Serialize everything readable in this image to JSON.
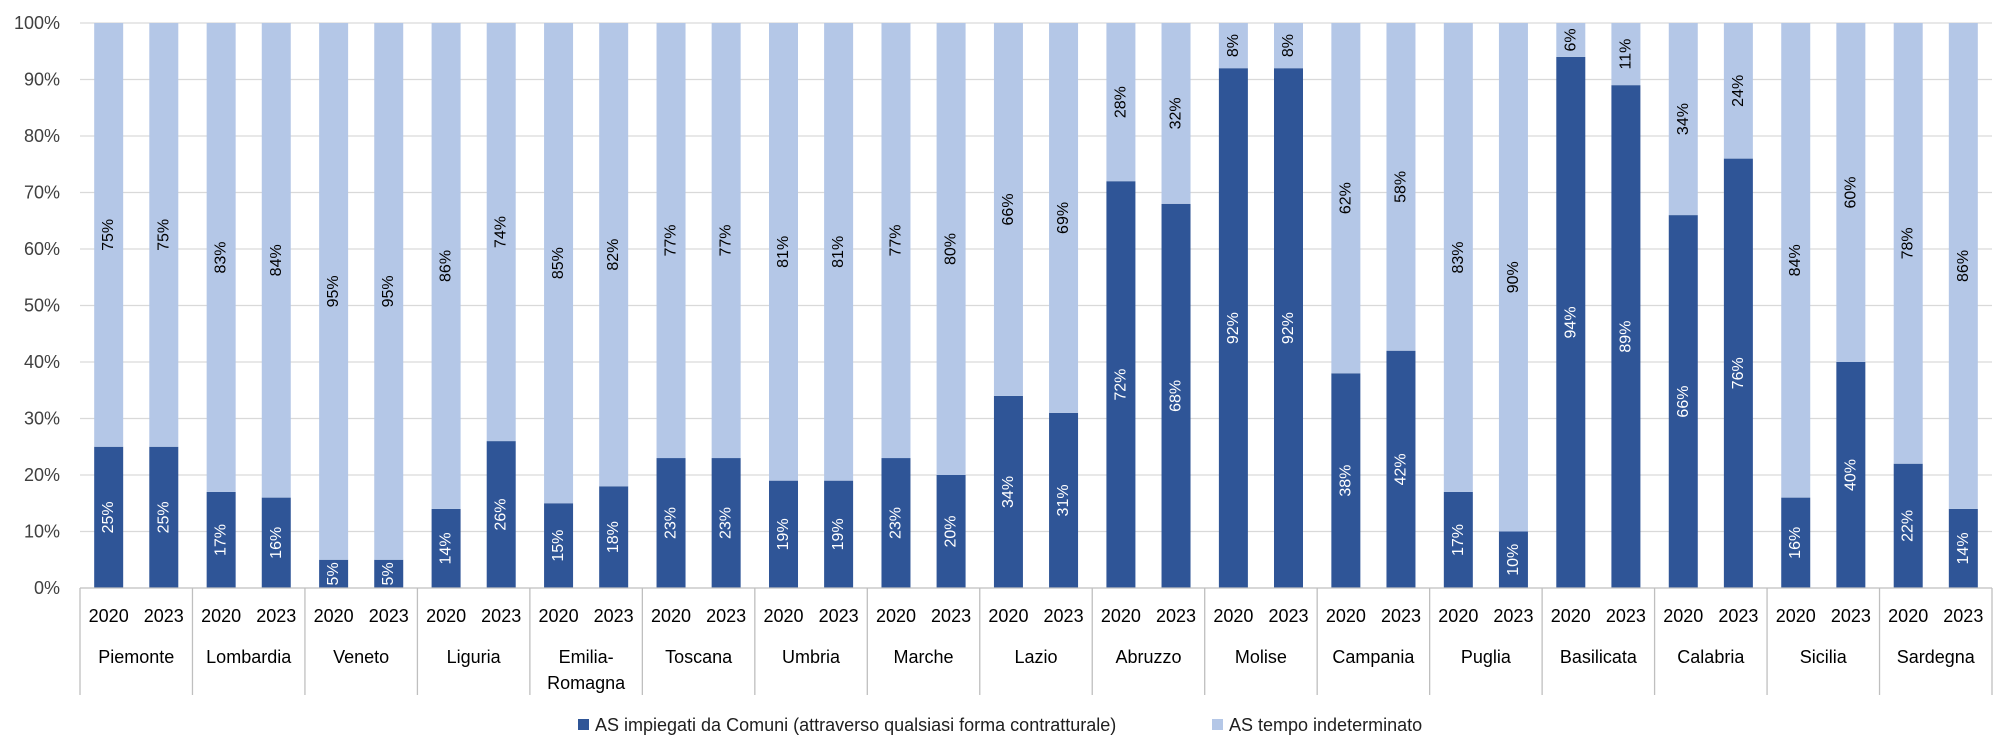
{
  "chart_data": {
    "type": "bar",
    "stacked": true,
    "percent_stacked": true,
    "title": "",
    "xlabel": "",
    "ylabel": "",
    "ylim": [
      0,
      100
    ],
    "yticks": [
      "0%",
      "10%",
      "20%",
      "30%",
      "40%",
      "50%",
      "60%",
      "70%",
      "80%",
      "90%",
      "100%"
    ],
    "grid": true,
    "legend_position": "bottom",
    "groups": [
      "Piemonte",
      "Lombardia",
      "Veneto",
      "Liguria",
      "Emilia-Romagna",
      "Toscana",
      "Umbria",
      "Marche",
      "Lazio",
      "Abruzzo",
      "Molise",
      "Campania",
      "Puglia",
      "Basilicata",
      "Calabria",
      "Sicilia",
      "Sardegna"
    ],
    "years": [
      "2020",
      "2023"
    ],
    "series": [
      {
        "name": "AS impiegati da Comuni (attraverso qualsiasi forma contratturale)",
        "color": "#2F5597",
        "label_color": "#ffffff",
        "values": [
          25,
          25,
          17,
          16,
          5,
          5,
          14,
          26,
          15,
          18,
          23,
          23,
          19,
          19,
          23,
          20,
          34,
          31,
          72,
          68,
          92,
          92,
          38,
          42,
          17,
          10,
          94,
          89,
          66,
          76,
          16,
          40,
          22,
          14
        ],
        "labels": [
          "25%",
          "25%",
          "17%",
          "16%",
          "5%",
          "5%",
          "14%",
          "26%",
          "15%",
          "18%",
          "23%",
          "23%",
          "19%",
          "19%",
          "23%",
          "20%",
          "34%",
          "31%",
          "72%",
          "68%",
          "92%",
          "92%",
          "38%",
          "42%",
          "17%",
          "10%",
          "94%",
          "89%",
          "66%",
          "76%",
          "16%",
          "40%",
          "22%",
          "14%"
        ]
      },
      {
        "name": "AS tempo indeterminato",
        "color": "#B4C7E7",
        "label_color": "#000000",
        "values": [
          75,
          75,
          83,
          84,
          95,
          95,
          86,
          74,
          85,
          82,
          77,
          77,
          81,
          81,
          77,
          80,
          66,
          69,
          28,
          32,
          8,
          8,
          62,
          58,
          83,
          90,
          6,
          11,
          34,
          24,
          84,
          60,
          78,
          86
        ],
        "labels": [
          "75%",
          "75%",
          "83%",
          "84%",
          "95%",
          "95%",
          "86%",
          "74%",
          "85%",
          "82%",
          "77%",
          "77%",
          "81%",
          "81%",
          "77%",
          "80%",
          "66%",
          "69%",
          "28%",
          "32%",
          "8%",
          "8%",
          "62%",
          "58%",
          "83%",
          "90%",
          "6%",
          "11%",
          "34%",
          "24%",
          "84%",
          "60%",
          "78%",
          "86%"
        ]
      }
    ]
  }
}
